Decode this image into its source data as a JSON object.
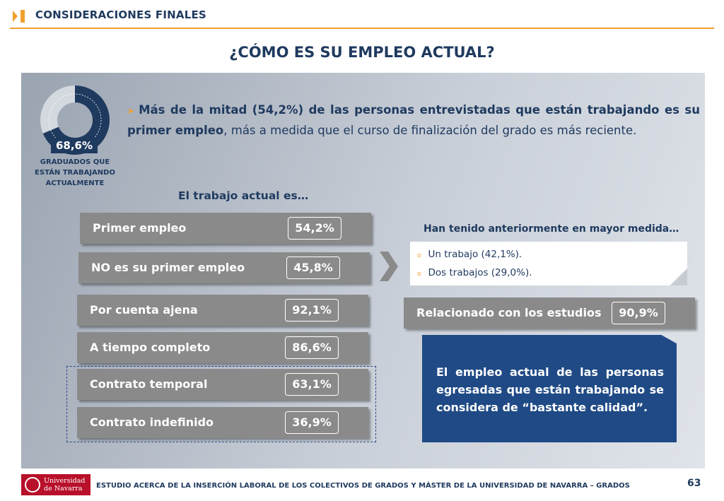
{
  "header": {
    "section_title": "CONSIDERACIONES FINALES",
    "accent_color": "#f0a030"
  },
  "page_title": "¿CÓMO ES SU EMPLEO ACTUAL?",
  "summary": {
    "donut_value": "68,6%",
    "donut_fraction": 0.686,
    "donut_caption_line1": "GRADUADOS QUE",
    "donut_caption_line2": "ESTÁN TRABAJANDO",
    "donut_caption_line3": "ACTUALMENTE"
  },
  "intro": {
    "bold_text": "Más de la mitad (54,2%) de las personas entrevistadas que están trabajando es su primer empleo",
    "normal_text": ", más a medida que el curso de finalización del grado es más reciente."
  },
  "subtitle": "El trabajo actual es…",
  "bars": [
    {
      "label": "Primer empleo",
      "value": "54,2%"
    },
    {
      "label": "NO es su primer empleo",
      "value": "45,8%"
    },
    {
      "label": "Por cuenta ajena",
      "value": "92,1%"
    },
    {
      "label": "A tiempo completo",
      "value": "86,6%"
    },
    {
      "label": "Contrato temporal",
      "value": "63,1%"
    },
    {
      "label": "Contrato indefinido",
      "value": "36,9%"
    }
  ],
  "previous": {
    "title": "Han tenido anteriormente en mayor medida…",
    "items": [
      "Un trabajo (42,1%).",
      "Dos trabajos (29,0%)."
    ]
  },
  "related": {
    "label": "Relacionado con los estudios",
    "value": "90,9%"
  },
  "conclusion": "El empleo actual de las personas egresadas que están trabajando se considera de “bastante calidad”.",
  "footer": {
    "logo_line1": "Universidad",
    "logo_line2": "de Navarra",
    "text": "ESTUDIO ACERCA DE LA INSERCIÓN LABORAL DE LOS COLECTIVOS DE GRADOS Y MÁSTER DE LA UNIVERSIDAD DE NAVARRA – GRADOS",
    "page_number": "63"
  }
}
